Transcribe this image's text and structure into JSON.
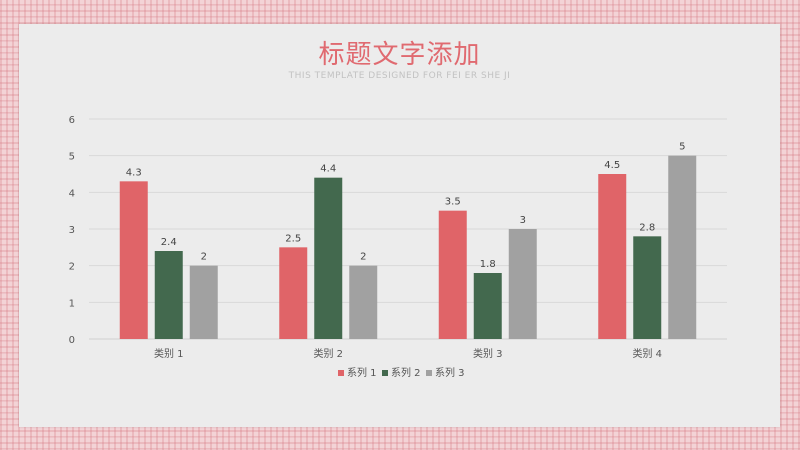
{
  "slide": {
    "title": "标题文字添加",
    "subtitle": "THIS TEMPLATE DESIGNED FOR FEI ER SHE JI"
  },
  "colors": {
    "series1": "#e06468",
    "series2": "#43694e",
    "series3": "#a1a1a1",
    "background_pattern": "#f3d3d6",
    "panel": "#ececec",
    "title": "#e06a70"
  },
  "chart_data": {
    "type": "bar",
    "categories": [
      "类别 1",
      "类别 2",
      "类别 3",
      "类别 4"
    ],
    "series": [
      {
        "name": "系列 1",
        "values": [
          4.3,
          2.5,
          3.5,
          4.5
        ]
      },
      {
        "name": "系列 2",
        "values": [
          2.4,
          4.4,
          1.8,
          2.8
        ]
      },
      {
        "name": "系列 3",
        "values": [
          2,
          2,
          3,
          5
        ]
      }
    ],
    "ylim": [
      0,
      6
    ],
    "yticks": [
      0,
      1,
      2,
      3,
      4,
      5,
      6
    ],
    "grid": true,
    "legend": "bottom",
    "data_labels": true
  }
}
